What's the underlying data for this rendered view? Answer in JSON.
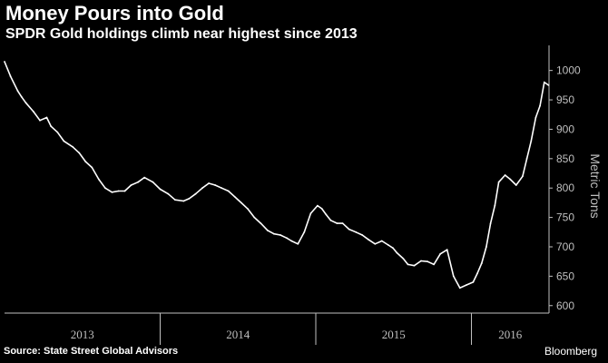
{
  "header": {
    "title": "Money Pours into Gold",
    "subtitle": "SPDR Gold holdings climb near highest since 2013"
  },
  "footer": {
    "source": "Source: State Street Global Advisors",
    "brand": "Bloomberg"
  },
  "colors": {
    "background": "#000000",
    "line": "#ffffff",
    "text": "#ffffff",
    "axis": "#bfbfbf"
  },
  "chart_data": {
    "type": "line",
    "title": "Money Pours into Gold",
    "subtitle": "SPDR Gold holdings climb near highest since 2013",
    "xlabel": "",
    "ylabel": "Metric Tons",
    "y_axis_side": "right",
    "ylim": [
      595,
      1035
    ],
    "yticks": [
      600,
      650,
      700,
      750,
      800,
      850,
      900,
      950,
      1000
    ],
    "xlim": [
      "2013-01-01",
      "2016-07-01"
    ],
    "x_tick_labels": [
      "2013",
      "2014",
      "2015",
      "2016"
    ],
    "grid": false,
    "series": [
      {
        "x": [
          "2013-01-01",
          "2013-01-15",
          "2013-02-01",
          "2013-02-10",
          "2013-02-20",
          "2013-03-10",
          "2013-03-25",
          "2013-04-10",
          "2013-04-20",
          "2013-05-05",
          "2013-05-20",
          "2013-06-10",
          "2013-06-25",
          "2013-07-10",
          "2013-07-25",
          "2013-08-10",
          "2013-08-25",
          "2013-09-10",
          "2013-09-25",
          "2013-10-10",
          "2013-10-25",
          "2013-11-10",
          "2013-11-25",
          "2013-12-15",
          "2014-01-01",
          "2014-01-20",
          "2014-02-05",
          "2014-02-25",
          "2014-03-10",
          "2014-03-25",
          "2014-04-10",
          "2014-04-25",
          "2014-05-10",
          "2014-05-25",
          "2014-06-10",
          "2014-06-25",
          "2014-07-10",
          "2014-07-25",
          "2014-08-10",
          "2014-08-25",
          "2014-09-10",
          "2014-09-25",
          "2014-10-10",
          "2014-10-25",
          "2014-11-05",
          "2014-11-20",
          "2014-12-05",
          "2014-12-20",
          "2015-01-05",
          "2015-01-15",
          "2015-01-25",
          "2015-02-05",
          "2015-02-20",
          "2015-03-05",
          "2015-03-20",
          "2015-04-05",
          "2015-04-20",
          "2015-05-05",
          "2015-05-20",
          "2015-06-05",
          "2015-06-20",
          "2015-07-01",
          "2015-07-10",
          "2015-07-25",
          "2015-08-05",
          "2015-08-20",
          "2015-09-05",
          "2015-09-20",
          "2015-10-05",
          "2015-10-20",
          "2015-11-05",
          "2015-11-20",
          "2015-12-05",
          "2015-12-20",
          "2016-01-05",
          "2016-01-15",
          "2016-01-25",
          "2016-02-05",
          "2016-02-15",
          "2016-02-25",
          "2016-03-05",
          "2016-03-20",
          "2016-04-01",
          "2016-04-15",
          "2016-04-30",
          "2016-05-10",
          "2016-05-20",
          "2016-05-31",
          "2016-06-10",
          "2016-06-20",
          "2016-06-30"
        ],
        "values": [
          1015,
          990,
          965,
          955,
          945,
          930,
          915,
          920,
          905,
          895,
          880,
          870,
          860,
          845,
          835,
          815,
          800,
          793,
          795,
          795,
          805,
          810,
          818,
          810,
          798,
          790,
          780,
          778,
          782,
          790,
          800,
          808,
          805,
          800,
          795,
          785,
          775,
          765,
          750,
          740,
          728,
          722,
          720,
          715,
          710,
          705,
          725,
          757,
          770,
          765,
          755,
          745,
          740,
          740,
          730,
          725,
          720,
          712,
          705,
          710,
          703,
          698,
          690,
          680,
          670,
          668,
          676,
          675,
          670,
          688,
          695,
          650,
          630,
          635,
          640,
          655,
          672,
          700,
          740,
          770,
          810,
          822,
          815,
          805,
          820,
          850,
          880,
          920,
          940,
          980,
          975
        ]
      }
    ]
  }
}
